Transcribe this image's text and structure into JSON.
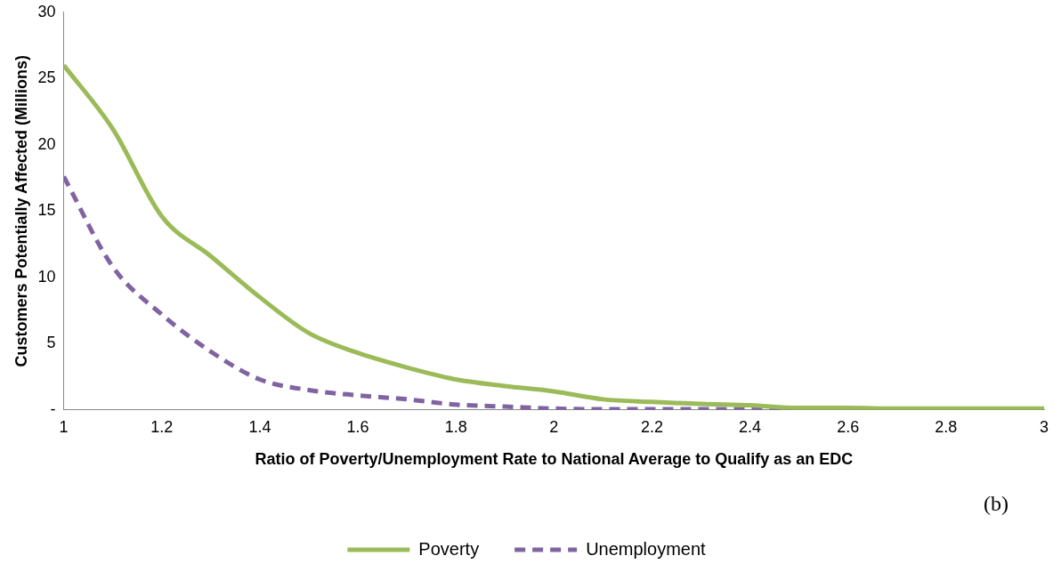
{
  "chart_data": {
    "type": "line",
    "xlabel": "Ratio of Poverty/Unemployment Rate to National Average to Qualify as an EDC",
    "ylabel": "Customers Potentially Affected (Millions)",
    "x": [
      1,
      1.1,
      1.2,
      1.3,
      1.4,
      1.5,
      1.6,
      1.7,
      1.8,
      1.9,
      2,
      2.1,
      2.2,
      2.3,
      2.4,
      2.5,
      2.6,
      2.7,
      2.8,
      2.9,
      3
    ],
    "series": [
      {
        "name": "Poverty",
        "color": "#9bbb59",
        "line_style": "solid",
        "values": [
          26,
          21.2,
          14.6,
          11.6,
          8.5,
          5.8,
          4.3,
          3.2,
          2.3,
          1.8,
          1.4,
          0.8,
          0.6,
          0.45,
          0.35,
          0.15,
          0.15,
          0.1,
          0.1,
          0.1,
          0.1
        ]
      },
      {
        "name": "Unemployment",
        "color": "#8064a2",
        "line_style": "dashed",
        "values": [
          17.6,
          10.8,
          7.2,
          4.4,
          2.3,
          1.5,
          1.1,
          0.8,
          0.4,
          0.25,
          0.1,
          0.05,
          0.05,
          0.05,
          0.05,
          0.05,
          0.05,
          0.05,
          0.05,
          0.05,
          0.05
        ]
      }
    ],
    "xlim": [
      1,
      3
    ],
    "xticks": [
      1,
      1.2,
      1.4,
      1.6,
      1.8,
      2,
      2.2,
      2.4,
      2.6,
      2.8,
      3
    ],
    "ylim": [
      0,
      30
    ],
    "yticks": [
      {
        "value": 0,
        "label": "-"
      },
      5,
      10,
      15,
      20,
      25,
      30
    ],
    "grid": false,
    "legend": "bottom",
    "marker": "none",
    "annotations": [
      "(b)"
    ]
  }
}
